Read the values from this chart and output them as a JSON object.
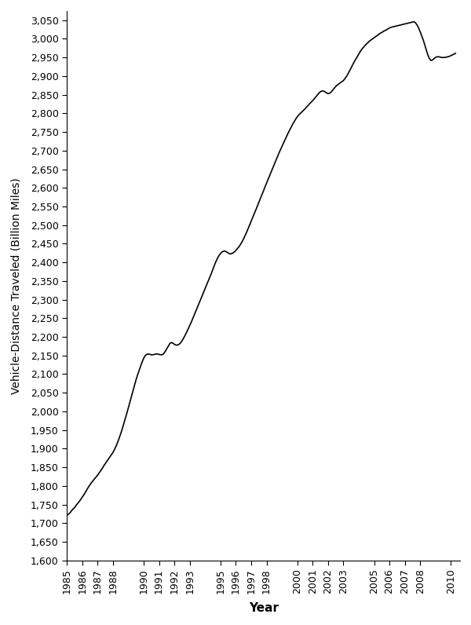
{
  "xlabel": "Year",
  "ylabel": "Vehicle-Distance Traveled (Billion Miles)",
  "ylim": [
    1600,
    3075
  ],
  "ytick_min": 1600,
  "ytick_max": 3050,
  "ytick_step": 50,
  "background_color": "#ffffff",
  "line_color": "#000000",
  "line_width": 1.2,
  "x_years": [
    1985,
    1986,
    1987,
    1988,
    1990,
    1991,
    1992,
    1993,
    1995,
    1996,
    1997,
    1998,
    2000,
    2001,
    2002,
    2003,
    2005,
    2006,
    2007,
    2008,
    2010
  ],
  "data": [
    [
      1985.0,
      1721
    ],
    [
      1985.1,
      1724
    ],
    [
      1985.2,
      1728
    ],
    [
      1985.3,
      1733
    ],
    [
      1985.4,
      1738
    ],
    [
      1985.5,
      1742
    ],
    [
      1985.6,
      1748
    ],
    [
      1985.7,
      1753
    ],
    [
      1985.8,
      1758
    ],
    [
      1985.9,
      1764
    ],
    [
      1986.0,
      1770
    ],
    [
      1986.1,
      1776
    ],
    [
      1986.2,
      1783
    ],
    [
      1986.3,
      1790
    ],
    [
      1986.4,
      1797
    ],
    [
      1986.5,
      1803
    ],
    [
      1986.6,
      1809
    ],
    [
      1986.7,
      1814
    ],
    [
      1986.8,
      1819
    ],
    [
      1986.9,
      1824
    ],
    [
      1987.0,
      1829
    ],
    [
      1987.1,
      1835
    ],
    [
      1987.2,
      1841
    ],
    [
      1987.3,
      1847
    ],
    [
      1987.4,
      1854
    ],
    [
      1987.5,
      1860
    ],
    [
      1987.6,
      1866
    ],
    [
      1987.7,
      1872
    ],
    [
      1987.8,
      1878
    ],
    [
      1987.9,
      1884
    ],
    [
      1988.0,
      1890
    ],
    [
      1988.1,
      1898
    ],
    [
      1988.2,
      1907
    ],
    [
      1988.3,
      1917
    ],
    [
      1988.4,
      1928
    ],
    [
      1988.5,
      1940
    ],
    [
      1988.6,
      1953
    ],
    [
      1988.7,
      1967
    ],
    [
      1988.8,
      1981
    ],
    [
      1988.9,
      1995
    ],
    [
      1989.0,
      2010
    ],
    [
      1989.1,
      2025
    ],
    [
      1989.2,
      2040
    ],
    [
      1989.3,
      2055
    ],
    [
      1989.4,
      2070
    ],
    [
      1989.5,
      2085
    ],
    [
      1989.6,
      2098
    ],
    [
      1989.7,
      2110
    ],
    [
      1989.8,
      2122
    ],
    [
      1989.9,
      2133
    ],
    [
      1990.0,
      2143
    ],
    [
      1990.1,
      2150
    ],
    [
      1990.2,
      2153
    ],
    [
      1990.3,
      2154
    ],
    [
      1990.4,
      2153
    ],
    [
      1990.5,
      2152
    ],
    [
      1990.6,
      2152
    ],
    [
      1990.7,
      2153
    ],
    [
      1990.8,
      2154
    ],
    [
      1990.9,
      2154
    ],
    [
      1991.0,
      2153
    ],
    [
      1991.1,
      2152
    ],
    [
      1991.2,
      2152
    ],
    [
      1991.3,
      2155
    ],
    [
      1991.4,
      2161
    ],
    [
      1991.5,
      2168
    ],
    [
      1991.6,
      2175
    ],
    [
      1991.7,
      2182
    ],
    [
      1991.8,
      2185
    ],
    [
      1991.9,
      2183
    ],
    [
      1992.0,
      2180
    ],
    [
      1992.1,
      2178
    ],
    [
      1992.2,
      2178
    ],
    [
      1992.3,
      2180
    ],
    [
      1992.4,
      2184
    ],
    [
      1992.5,
      2190
    ],
    [
      1992.6,
      2197
    ],
    [
      1992.7,
      2205
    ],
    [
      1992.8,
      2213
    ],
    [
      1992.9,
      2222
    ],
    [
      1993.0,
      2231
    ],
    [
      1993.1,
      2240
    ],
    [
      1993.2,
      2250
    ],
    [
      1993.3,
      2260
    ],
    [
      1993.4,
      2270
    ],
    [
      1993.5,
      2280
    ],
    [
      1993.6,
      2290
    ],
    [
      1993.7,
      2300
    ],
    [
      1993.8,
      2310
    ],
    [
      1993.9,
      2320
    ],
    [
      1994.0,
      2330
    ],
    [
      1994.1,
      2340
    ],
    [
      1994.2,
      2350
    ],
    [
      1994.3,
      2360
    ],
    [
      1994.4,
      2370
    ],
    [
      1994.5,
      2381
    ],
    [
      1994.6,
      2392
    ],
    [
      1994.7,
      2402
    ],
    [
      1994.8,
      2411
    ],
    [
      1994.9,
      2418
    ],
    [
      1995.0,
      2424
    ],
    [
      1995.1,
      2428
    ],
    [
      1995.2,
      2430
    ],
    [
      1995.3,
      2430
    ],
    [
      1995.4,
      2428
    ],
    [
      1995.5,
      2425
    ],
    [
      1995.6,
      2423
    ],
    [
      1995.7,
      2423
    ],
    [
      1995.8,
      2425
    ],
    [
      1995.9,
      2428
    ],
    [
      1996.0,
      2432
    ],
    [
      1996.1,
      2437
    ],
    [
      1996.2,
      2442
    ],
    [
      1996.3,
      2448
    ],
    [
      1996.4,
      2455
    ],
    [
      1996.5,
      2463
    ],
    [
      1996.6,
      2472
    ],
    [
      1996.7,
      2481
    ],
    [
      1996.8,
      2491
    ],
    [
      1996.9,
      2501
    ],
    [
      1997.0,
      2511
    ],
    [
      1997.1,
      2521
    ],
    [
      1997.2,
      2531
    ],
    [
      1997.3,
      2541
    ],
    [
      1997.4,
      2551
    ],
    [
      1997.5,
      2562
    ],
    [
      1997.6,
      2572
    ],
    [
      1997.7,
      2582
    ],
    [
      1997.8,
      2592
    ],
    [
      1997.9,
      2603
    ],
    [
      1998.0,
      2613
    ],
    [
      1998.1,
      2623
    ],
    [
      1998.2,
      2633
    ],
    [
      1998.3,
      2643
    ],
    [
      1998.4,
      2653
    ],
    [
      1998.5,
      2663
    ],
    [
      1998.6,
      2673
    ],
    [
      1998.7,
      2683
    ],
    [
      1998.8,
      2693
    ],
    [
      1998.9,
      2702
    ],
    [
      1999.0,
      2711
    ],
    [
      1999.1,
      2720
    ],
    [
      1999.2,
      2729
    ],
    [
      1999.3,
      2738
    ],
    [
      1999.4,
      2747
    ],
    [
      1999.5,
      2755
    ],
    [
      1999.6,
      2763
    ],
    [
      1999.7,
      2771
    ],
    [
      1999.8,
      2778
    ],
    [
      1999.9,
      2785
    ],
    [
      2000.0,
      2791
    ],
    [
      2000.1,
      2796
    ],
    [
      2000.2,
      2800
    ],
    [
      2000.3,
      2804
    ],
    [
      2000.4,
      2808
    ],
    [
      2000.5,
      2812
    ],
    [
      2000.6,
      2817
    ],
    [
      2000.7,
      2821
    ],
    [
      2000.8,
      2826
    ],
    [
      2000.9,
      2830
    ],
    [
      2001.0,
      2834
    ],
    [
      2001.1,
      2839
    ],
    [
      2001.2,
      2844
    ],
    [
      2001.3,
      2849
    ],
    [
      2001.4,
      2854
    ],
    [
      2001.5,
      2858
    ],
    [
      2001.6,
      2860
    ],
    [
      2001.7,
      2860
    ],
    [
      2001.8,
      2858
    ],
    [
      2001.9,
      2855
    ],
    [
      2002.0,
      2853
    ],
    [
      2002.1,
      2854
    ],
    [
      2002.2,
      2857
    ],
    [
      2002.3,
      2862
    ],
    [
      2002.4,
      2867
    ],
    [
      2002.5,
      2872
    ],
    [
      2002.6,
      2876
    ],
    [
      2002.7,
      2879
    ],
    [
      2002.8,
      2882
    ],
    [
      2002.9,
      2885
    ],
    [
      2003.0,
      2888
    ],
    [
      2003.1,
      2893
    ],
    [
      2003.2,
      2899
    ],
    [
      2003.3,
      2906
    ],
    [
      2003.4,
      2914
    ],
    [
      2003.5,
      2922
    ],
    [
      2003.6,
      2930
    ],
    [
      2003.7,
      2938
    ],
    [
      2003.8,
      2945
    ],
    [
      2003.9,
      2952
    ],
    [
      2004.0,
      2959
    ],
    [
      2004.1,
      2966
    ],
    [
      2004.2,
      2972
    ],
    [
      2004.3,
      2977
    ],
    [
      2004.4,
      2982
    ],
    [
      2004.5,
      2986
    ],
    [
      2004.6,
      2990
    ],
    [
      2004.7,
      2994
    ],
    [
      2004.8,
      2997
    ],
    [
      2004.9,
      3000
    ],
    [
      2005.0,
      3003
    ],
    [
      2005.1,
      3006
    ],
    [
      2005.2,
      3009
    ],
    [
      2005.3,
      3012
    ],
    [
      2005.4,
      3015
    ],
    [
      2005.5,
      3017
    ],
    [
      2005.6,
      3020
    ],
    [
      2005.7,
      3022
    ],
    [
      2005.8,
      3024
    ],
    [
      2005.9,
      3027
    ],
    [
      2006.0,
      3029
    ],
    [
      2006.1,
      3031
    ],
    [
      2006.2,
      3032
    ],
    [
      2006.3,
      3033
    ],
    [
      2006.4,
      3034
    ],
    [
      2006.5,
      3035
    ],
    [
      2006.6,
      3036
    ],
    [
      2006.7,
      3037
    ],
    [
      2006.8,
      3038
    ],
    [
      2006.9,
      3039
    ],
    [
      2007.0,
      3040
    ],
    [
      2007.1,
      3041
    ],
    [
      2007.2,
      3042
    ],
    [
      2007.3,
      3043
    ],
    [
      2007.4,
      3044
    ],
    [
      2007.5,
      3045
    ],
    [
      2007.6,
      3046
    ],
    [
      2007.7,
      3043
    ],
    [
      2007.8,
      3037
    ],
    [
      2007.9,
      3029
    ],
    [
      2008.0,
      3019
    ],
    [
      2008.1,
      3008
    ],
    [
      2008.2,
      2997
    ],
    [
      2008.3,
      2984
    ],
    [
      2008.4,
      2970
    ],
    [
      2008.5,
      2957
    ],
    [
      2008.6,
      2947
    ],
    [
      2008.7,
      2942
    ],
    [
      2008.8,
      2943
    ],
    [
      2008.9,
      2947
    ],
    [
      2009.0,
      2950
    ],
    [
      2009.1,
      2952
    ],
    [
      2009.2,
      2952
    ],
    [
      2009.3,
      2951
    ],
    [
      2009.4,
      2950
    ],
    [
      2009.5,
      2950
    ],
    [
      2009.6,
      2950
    ],
    [
      2009.7,
      2951
    ],
    [
      2009.8,
      2952
    ],
    [
      2009.9,
      2953
    ],
    [
      2010.0,
      2955
    ],
    [
      2010.1,
      2957
    ],
    [
      2010.2,
      2959
    ],
    [
      2010.3,
      2961
    ]
  ]
}
